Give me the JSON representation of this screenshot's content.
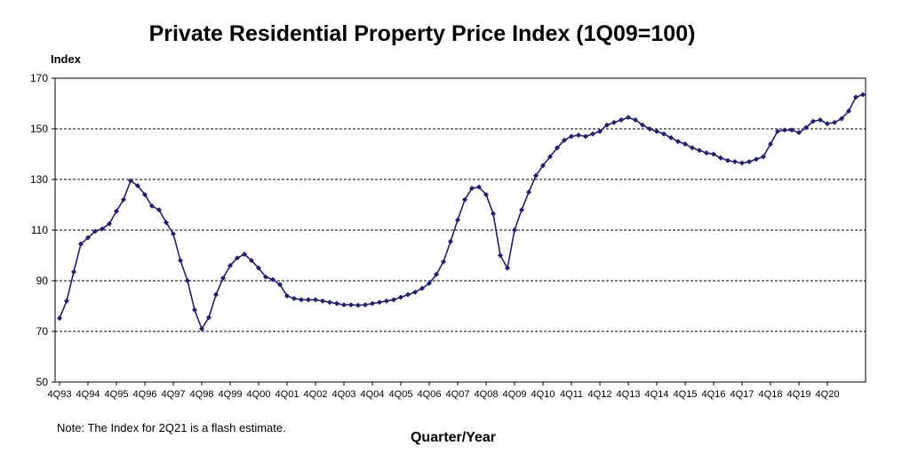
{
  "chart_data": {
    "type": "line",
    "title": "Private Residential Property Price Index (1Q09=100)",
    "ylabel": "Index",
    "xlabel": "Quarter/Year",
    "note": "Note: The Index for 2Q21 is a flash estimate.",
    "ylim": [
      50,
      170
    ],
    "yticks": [
      50,
      70,
      90,
      110,
      130,
      150,
      170
    ],
    "xtick_labels": [
      "4Q93",
      "4Q94",
      "4Q95",
      "4Q96",
      "4Q97",
      "4Q98",
      "4Q99",
      "4Q00",
      "4Q01",
      "4Q02",
      "4Q03",
      "4Q04",
      "4Q05",
      "4Q06",
      "4Q07",
      "4Q08",
      "4Q09",
      "4Q10",
      "4Q11",
      "4Q12",
      "4Q13",
      "4Q14",
      "4Q15",
      "4Q16",
      "4Q17",
      "4Q18",
      "4Q19",
      "4Q20"
    ],
    "grid": "horizontal dashed",
    "line_color": "#1f1f78",
    "series": [
      {
        "values": [
          75.2,
          82,
          93.5,
          104.5,
          107,
          109.5,
          110.5,
          112.5,
          117.5,
          122,
          129.5,
          127.5,
          124,
          119.5,
          118,
          113,
          108.5,
          98,
          90,
          78.5,
          71,
          75.5,
          84.5,
          91,
          96,
          99,
          100.5,
          98,
          95,
          91.5,
          90.5,
          88.5,
          84,
          83,
          82.5,
          82.5,
          82.5,
          82,
          81.5,
          81,
          80.5,
          80.5,
          80.3,
          80.5,
          81,
          81.5,
          82,
          82.5,
          83.5,
          84.5,
          85.5,
          87,
          89,
          92.5,
          97.5,
          105.5,
          114,
          122,
          126.5,
          127,
          124,
          116.5,
          100,
          95,
          110,
          118,
          125,
          131.5,
          135.5,
          139,
          142.5,
          145.5,
          147,
          147.5,
          147,
          148,
          149,
          151.5,
          152.5,
          153.5,
          154.5,
          153.5,
          151.5,
          150,
          149,
          148,
          146.5,
          145,
          144,
          142.5,
          141.5,
          140.5,
          140,
          138.5,
          137.5,
          137,
          136.5,
          137,
          138,
          139,
          144,
          149,
          149.5,
          149.5,
          148.5,
          150.5,
          153,
          153.5,
          152,
          152.5,
          154,
          157,
          162.5,
          163.5
        ]
      }
    ]
  }
}
